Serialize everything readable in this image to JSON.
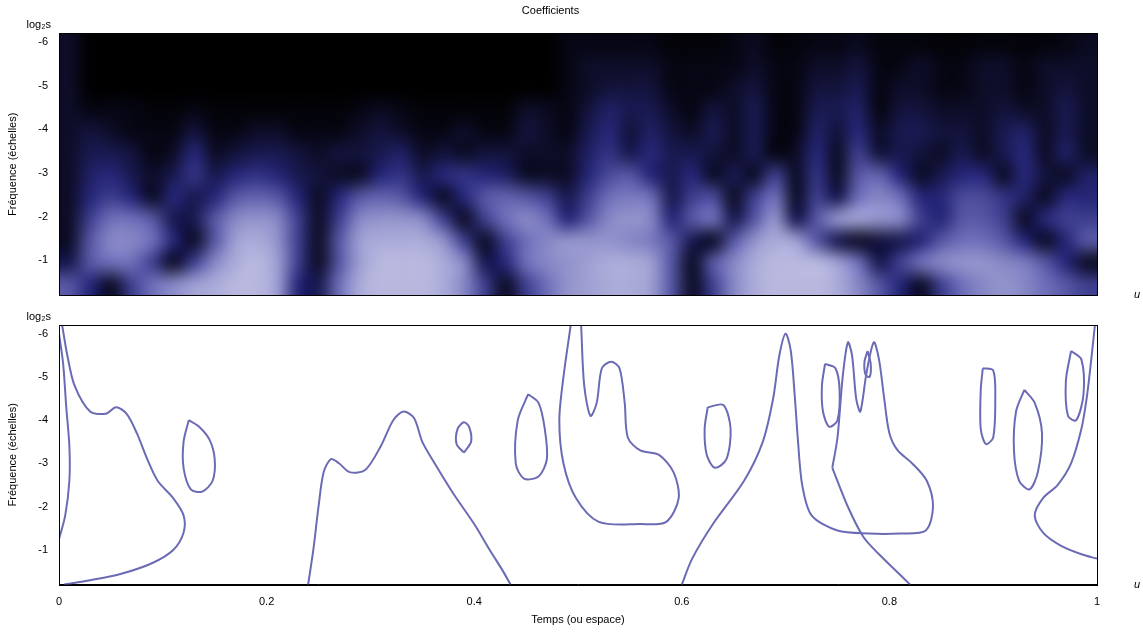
{
  "chart_data": [
    {
      "type": "heatmap",
      "title": "Coefficients",
      "y_axis_name": "log₂s",
      "y_label": "Fréquence (échelles)",
      "x_axis_name": "u",
      "xlim": [
        0,
        1
      ],
      "xticks": [
        0,
        0.2,
        0.4,
        0.6,
        0.8,
        1
      ],
      "ylim": [
        -0.2,
        -6.2
      ],
      "yticks": [
        -6,
        -5,
        -4,
        -3,
        -2,
        -1
      ],
      "grid": false,
      "tick_labels": "y",
      "cells": [
        [
          0.1,
          0,
          0,
          0,
          0,
          0,
          0,
          0,
          0,
          0,
          0,
          0,
          0,
          0,
          0,
          0,
          0,
          0,
          0,
          0,
          0,
          0,
          0,
          0,
          0.05,
          0.05,
          0.05,
          0.05,
          0.05,
          0.02,
          0.02,
          0.02,
          0.05,
          0.08,
          0.02,
          0.03,
          0.05,
          0.05,
          0.08,
          0.03,
          0.03,
          0.03,
          0.02,
          0.02,
          0.03,
          0.03,
          0.02,
          0.03,
          0.05,
          0.08
        ],
        [
          0.1,
          0,
          0,
          0,
          0,
          0,
          0,
          0,
          0,
          0,
          0,
          0,
          0,
          0,
          0,
          0,
          0,
          0,
          0,
          0,
          0,
          0,
          0,
          0,
          0.05,
          0.1,
          0.1,
          0.1,
          0.1,
          0.05,
          0.05,
          0.05,
          0.05,
          0.1,
          0.05,
          0.05,
          0.1,
          0.1,
          0.15,
          0.05,
          0.05,
          0.1,
          0.05,
          0.05,
          0.1,
          0.1,
          0.05,
          0.1,
          0.1,
          0.1
        ],
        [
          0.1,
          0,
          0,
          0,
          0,
          0,
          0,
          0,
          0,
          0,
          0,
          0,
          0,
          0,
          0,
          0,
          0,
          0,
          0,
          0,
          0,
          0,
          0,
          0,
          0.05,
          0.1,
          0.15,
          0.15,
          0.15,
          0.05,
          0.05,
          0.05,
          0.1,
          0.15,
          0.05,
          0.05,
          0.15,
          0.15,
          0.2,
          0.05,
          0.1,
          0.1,
          0.05,
          0.05,
          0.1,
          0.1,
          0.05,
          0.1,
          0.15,
          0.1
        ],
        [
          0.1,
          0.05,
          0.05,
          0.05,
          0.02,
          0.02,
          0.05,
          0.02,
          0.02,
          0.02,
          0.02,
          0.02,
          0.02,
          0.02,
          0.05,
          0.08,
          0.05,
          0.02,
          0.02,
          0.02,
          0.02,
          0.02,
          0.1,
          0.08,
          0.05,
          0.15,
          0.25,
          0.2,
          0.2,
          0.1,
          0.05,
          0.15,
          0.1,
          0.2,
          0.05,
          0.05,
          0.2,
          0.2,
          0.25,
          0.05,
          0.15,
          0.15,
          0.1,
          0.1,
          0.1,
          0.15,
          0.1,
          0.1,
          0.2,
          0.1
        ],
        [
          0.1,
          0.15,
          0.1,
          0.05,
          0.05,
          0.05,
          0.15,
          0.05,
          0.05,
          0.1,
          0.1,
          0.05,
          0.05,
          0.05,
          0.1,
          0.15,
          0.1,
          0.05,
          0.05,
          0.1,
          0.05,
          0.05,
          0.15,
          0.1,
          0.05,
          0.2,
          0.3,
          0.15,
          0.25,
          0.15,
          0.1,
          0.2,
          0.1,
          0.2,
          0.05,
          0.05,
          0.25,
          0.15,
          0.3,
          0.1,
          0.2,
          0.2,
          0.15,
          0.15,
          0.1,
          0.2,
          0.25,
          0.1,
          0.2,
          0.1
        ],
        [
          0.1,
          0.2,
          0.2,
          0.15,
          0.05,
          0.1,
          0.3,
          0.1,
          0.15,
          0.2,
          0.2,
          0.15,
          0.1,
          0.15,
          0.15,
          0.2,
          0.25,
          0.1,
          0.15,
          0.1,
          0.15,
          0.15,
          0.1,
          0.1,
          0.1,
          0.25,
          0.35,
          0.2,
          0.3,
          0.2,
          0.2,
          0.15,
          0.1,
          0.2,
          0.05,
          0.1,
          0.3,
          0.1,
          0.4,
          0.15,
          0.2,
          0.15,
          0.1,
          0.2,
          0.1,
          0.2,
          0.3,
          0.1,
          0.25,
          0.1
        ],
        [
          0.1,
          0.25,
          0.3,
          0.2,
          0.1,
          0.2,
          0.35,
          0.2,
          0.3,
          0.35,
          0.3,
          0.2,
          0.15,
          0.1,
          0.1,
          0.3,
          0.35,
          0.2,
          0.3,
          0.35,
          0.3,
          0.25,
          0.1,
          0.1,
          0.1,
          0.3,
          0.45,
          0.5,
          0.3,
          0.2,
          0.3,
          0.1,
          0.2,
          0.1,
          0.4,
          0.1,
          0.35,
          0.1,
          0.5,
          0.55,
          0.3,
          0.1,
          0.2,
          0.3,
          0.3,
          0.1,
          0.3,
          0.15,
          0.1,
          0.25
        ],
        [
          0.1,
          0.3,
          0.4,
          0.3,
          0.1,
          0.3,
          0.2,
          0.3,
          0.5,
          0.55,
          0.5,
          0.3,
          0.1,
          0.3,
          0.5,
          0.55,
          0.5,
          0.3,
          0.1,
          0.3,
          0.5,
          0.55,
          0.5,
          0.4,
          0.2,
          0.4,
          0.6,
          0.65,
          0.6,
          0.2,
          0.4,
          0.45,
          0.1,
          0.4,
          0.6,
          0.1,
          0.4,
          0.2,
          0.6,
          0.7,
          0.6,
          0.3,
          0.3,
          0.45,
          0.45,
          0.35,
          0.25,
          0.1,
          0.3,
          0.3
        ],
        [
          0.1,
          0.4,
          0.6,
          0.6,
          0.5,
          0.2,
          0.2,
          0.5,
          0.7,
          0.75,
          0.7,
          0.4,
          0.1,
          0.4,
          0.7,
          0.75,
          0.75,
          0.7,
          0.4,
          0.1,
          0.4,
          0.6,
          0.7,
          0.6,
          0.3,
          0.5,
          0.7,
          0.75,
          0.7,
          0.3,
          0.5,
          0.6,
          0.2,
          0.5,
          0.75,
          0.2,
          0.5,
          0.75,
          0.8,
          0.75,
          0.7,
          0.4,
          0.3,
          0.5,
          0.5,
          0.4,
          0.1,
          0.3,
          0.4,
          0.4
        ],
        [
          0.1,
          0.5,
          0.7,
          0.7,
          0.6,
          0.3,
          0.1,
          0.5,
          0.8,
          0.85,
          0.75,
          0.4,
          0.1,
          0.5,
          0.8,
          0.85,
          0.85,
          0.85,
          0.75,
          0.4,
          0.1,
          0.4,
          0.6,
          0.7,
          0.75,
          0.75,
          0.75,
          0.7,
          0.65,
          0.5,
          0.2,
          0.1,
          0.5,
          0.75,
          0.85,
          0.8,
          0.5,
          0.2,
          0.1,
          0.15,
          0.2,
          0.3,
          0.5,
          0.6,
          0.6,
          0.5,
          0.3,
          0.1,
          0.3,
          0.5
        ],
        [
          0.2,
          0.5,
          0.6,
          0.6,
          0.4,
          0.1,
          0.4,
          0.7,
          0.85,
          0.9,
          0.8,
          0.4,
          0.1,
          0.5,
          0.8,
          0.9,
          0.9,
          0.9,
          0.85,
          0.7,
          0.2,
          0.3,
          0.6,
          0.7,
          0.75,
          0.8,
          0.85,
          0.85,
          0.8,
          0.5,
          0.1,
          0.5,
          0.7,
          0.85,
          0.9,
          0.9,
          0.9,
          0.8,
          0.6,
          0.2,
          0.4,
          0.6,
          0.7,
          0.75,
          0.75,
          0.7,
          0.65,
          0.5,
          0.3,
          0.1
        ],
        [
          0.5,
          0.3,
          0.1,
          0.4,
          0.6,
          0.7,
          0.8,
          0.85,
          0.9,
          0.9,
          0.8,
          0.3,
          0.2,
          0.6,
          0.85,
          0.9,
          0.9,
          0.9,
          0.85,
          0.7,
          0.4,
          0.1,
          0.4,
          0.6,
          0.75,
          0.8,
          0.85,
          0.85,
          0.8,
          0.5,
          0.1,
          0.4,
          0.7,
          0.85,
          0.9,
          0.9,
          0.9,
          0.85,
          0.7,
          0.5,
          0.3,
          0.1,
          0.4,
          0.6,
          0.7,
          0.75,
          0.7,
          0.6,
          0.5,
          0.4
        ]
      ]
    },
    {
      "type": "line",
      "y_axis_name": "log₂s",
      "y_label": "Fréquence (échelles)",
      "x_axis_name": "u",
      "x_label": "Temps (ou espace)",
      "xlim": [
        0,
        1
      ],
      "xticks": [
        0,
        0.2,
        0.4,
        0.6,
        0.8,
        1
      ],
      "ylim": [
        -0.2,
        -6.2
      ],
      "yticks": [
        -6,
        -5,
        -4,
        -3,
        -2,
        -1
      ],
      "grid": false,
      "series": [
        {
          "color": "#6b6bb5",
          "x": [
            0.003,
            0.008,
            0.015,
            0.03,
            0.045,
            0.055,
            0.065,
            0.075,
            0.085,
            0.095,
            0.11,
            0.12,
            0.12,
            0.11,
            0.09,
            0.06,
            0.03,
            0.005
          ],
          "values": [
            -6.2,
            -5.5,
            -4.8,
            -4.2,
            -4.15,
            -4.3,
            -4.15,
            -3.7,
            -3.1,
            -2.6,
            -2.2,
            -1.8,
            -1.4,
            -1.0,
            -0.7,
            -0.45,
            -0.3,
            -0.2
          ]
        },
        {
          "color": "#6b6bb5",
          "x": [
            0,
            0.006,
            0.01,
            0.01,
            0.007,
            0.004,
            0
          ],
          "values": [
            -1.25,
            -1.8,
            -2.6,
            -3.4,
            -4.3,
            -5.3,
            -6.0
          ]
        },
        {
          "color": "#6b6bb5",
          "x": [
            0.125,
            0.135,
            0.145,
            0.15,
            0.148,
            0.138,
            0.127,
            0.12,
            0.12,
            0.125
          ],
          "values": [
            -4.0,
            -3.85,
            -3.55,
            -3.1,
            -2.6,
            -2.35,
            -2.4,
            -2.9,
            -3.5,
            -4.0
          ]
        },
        {
          "color": "#6b6bb5",
          "x": [
            0.24,
            0.245,
            0.25,
            0.255,
            0.262,
            0.27,
            0.28,
            0.295,
            0.31,
            0.322,
            0.332,
            0.342,
            0.35,
            0.362,
            0.38,
            0.4,
            0.415,
            0.428,
            0.435
          ],
          "values": [
            -0.2,
            -1.0,
            -2.0,
            -2.8,
            -3.1,
            -3.0,
            -2.8,
            -2.85,
            -3.4,
            -4.0,
            -4.2,
            -4.05,
            -3.5,
            -3.0,
            -2.3,
            -1.6,
            -1.0,
            -0.5,
            -0.2
          ]
        },
        {
          "color": "#6b6bb5",
          "x": [
            0.39,
            0.397,
            0.395,
            0.39,
            0.384,
            0.383,
            0.39
          ],
          "values": [
            -3.25,
            -3.5,
            -3.85,
            -3.95,
            -3.8,
            -3.45,
            -3.25
          ]
        },
        {
          "color": "#6b6bb5",
          "x": [
            0.452,
            0.462,
            0.468,
            0.47,
            0.462,
            0.448,
            0.44,
            0.442,
            0.452
          ],
          "values": [
            -4.6,
            -4.4,
            -3.8,
            -3.1,
            -2.7,
            -2.65,
            -3.0,
            -4.0,
            -4.6
          ]
        },
        {
          "color": "#6b6bb5",
          "x": [
            0.493,
            0.486,
            0.482,
            0.486,
            0.498,
            0.52,
            0.56,
            0.585,
            0.597,
            0.592,
            0.578,
            0.56,
            0.548,
            0.545,
            0.54,
            0.532,
            0.523,
            0.518,
            0.512,
            0.506,
            0.503
          ],
          "values": [
            -6.2,
            -5.0,
            -4.0,
            -3.0,
            -2.2,
            -1.65,
            -1.6,
            -1.65,
            -2.2,
            -2.8,
            -3.2,
            -3.3,
            -3.6,
            -4.4,
            -5.2,
            -5.35,
            -5.2,
            -4.4,
            -4.1,
            -4.8,
            -6.2
          ]
        },
        {
          "color": "#6b6bb5",
          "x": [
            0.625,
            0.64,
            0.647,
            0.643,
            0.632,
            0.624,
            0.622,
            0.625
          ],
          "values": [
            -4.3,
            -4.35,
            -3.8,
            -3.1,
            -2.9,
            -3.2,
            -3.8,
            -4.3
          ]
        },
        {
          "color": "#6b6bb5",
          "x": [
            0.6,
            0.61,
            0.63,
            0.66,
            0.678,
            0.688,
            0.694,
            0.7,
            0.705,
            0.709,
            0.712,
            0.716,
            0.725,
            0.75,
            0.78,
            0.81,
            0.835,
            0.842,
            0.836,
            0.822,
            0.808,
            0.8,
            0.795,
            0.79,
            0.785,
            0.778,
            0.772,
            0.768,
            0.764,
            0.76,
            0.755,
            0.75,
            0.745
          ],
          "values": [
            -0.2,
            -0.8,
            -1.6,
            -2.6,
            -3.5,
            -4.5,
            -5.5,
            -6.0,
            -5.6,
            -4.5,
            -3.5,
            -2.5,
            -1.8,
            -1.45,
            -1.38,
            -1.38,
            -1.45,
            -2.0,
            -2.6,
            -3.0,
            -3.3,
            -3.7,
            -4.5,
            -5.4,
            -5.8,
            -5.1,
            -4.2,
            -4.5,
            -5.5,
            -5.8,
            -5.0,
            -3.6,
            -2.9
          ]
        },
        {
          "color": "#6b6bb5",
          "x": [
            0.745,
            0.76,
            0.775,
            0.79,
            0.805,
            0.82
          ],
          "values": [
            -2.9,
            -2.0,
            -1.3,
            -0.9,
            -0.55,
            -0.2
          ]
        },
        {
          "color": "#6b6bb5",
          "x": [
            0.738,
            0.748,
            0.752,
            0.75,
            0.742,
            0.736,
            0.735,
            0.738
          ],
          "values": [
            -5.3,
            -5.2,
            -4.7,
            -4.0,
            -3.85,
            -4.2,
            -4.8,
            -5.3
          ]
        },
        {
          "color": "#6b6bb5",
          "x": [
            0.779,
            0.782,
            0.781,
            0.777,
            0.776,
            0.779
          ],
          "values": [
            -5.6,
            -5.3,
            -5.0,
            -5.05,
            -5.35,
            -5.6
          ]
        },
        {
          "color": "#6b6bb5",
          "x": [
            0.89,
            0.9,
            0.902,
            0.9,
            0.893,
            0.888,
            0.888,
            0.89
          ],
          "values": [
            -5.2,
            -5.15,
            -4.5,
            -3.6,
            -3.45,
            -3.8,
            -4.7,
            -5.2
          ]
        },
        {
          "color": "#6b6bb5",
          "x": [
            0.93,
            0.94,
            0.947,
            0.943,
            0.935,
            0.925,
            0.92,
            0.922,
            0.93
          ],
          "values": [
            -4.7,
            -4.4,
            -3.7,
            -2.8,
            -2.4,
            -2.6,
            -3.3,
            -4.2,
            -4.7
          ]
        },
        {
          "color": "#6b6bb5",
          "x": [
            0.975,
            0.985,
            0.987,
            0.98,
            0.972,
            0.97,
            0.975
          ],
          "values": [
            -5.6,
            -5.4,
            -4.6,
            -4.0,
            -4.1,
            -4.9,
            -5.6
          ]
        },
        {
          "color": "#6b6bb5",
          "x": [
            0.998,
            0.994,
            0.99,
            0.985,
            0.975,
            0.962,
            0.948,
            0.94,
            0.948,
            0.965,
            0.985,
            1.0
          ],
          "values": [
            -6.2,
            -5.3,
            -4.5,
            -3.8,
            -3.0,
            -2.5,
            -2.2,
            -1.8,
            -1.4,
            -1.1,
            -0.9,
            -0.8
          ]
        }
      ]
    }
  ]
}
